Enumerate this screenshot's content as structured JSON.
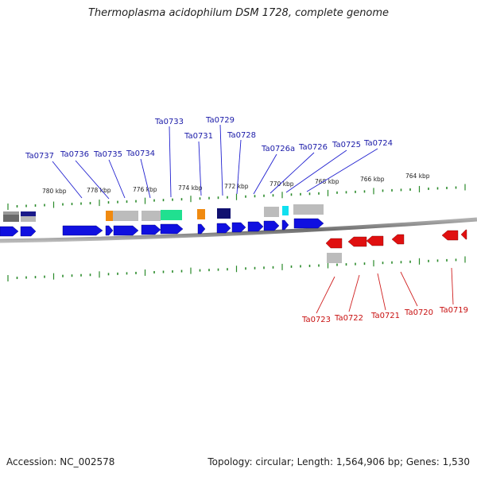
{
  "title": "Thermoplasma acidophilum DSM 1728, complete genome",
  "accession": "Accession: NC_002578",
  "summary": "Topology: circular; Length: 1,564,906 bp; Genes: 1,530",
  "colors": {
    "forward_gene": "#1010e0",
    "reverse_gene": "#e01010",
    "forward_label": "#1a1aa8",
    "reverse_label": "#c81010",
    "tick": "#2a8a2a",
    "backbone": "#808080"
  },
  "scale_labels": [
    "780 kbp",
    "778 kbp",
    "776 kbp",
    "774 kbp",
    "772 kbp",
    "770 kbp",
    "768 kbp",
    "766 kbp",
    "764 kbp"
  ],
  "forward_genes": [
    "Ta0737",
    "Ta0736",
    "Ta0735",
    "Ta0734",
    "Ta0733",
    "Ta0731",
    "Ta0729",
    "Ta0728",
    "Ta0726a",
    "Ta0726",
    "Ta0725",
    "Ta0724"
  ],
  "reverse_genes": [
    "Ta0723",
    "Ta0722",
    "Ta0721",
    "Ta0720",
    "Ta0719"
  ]
}
